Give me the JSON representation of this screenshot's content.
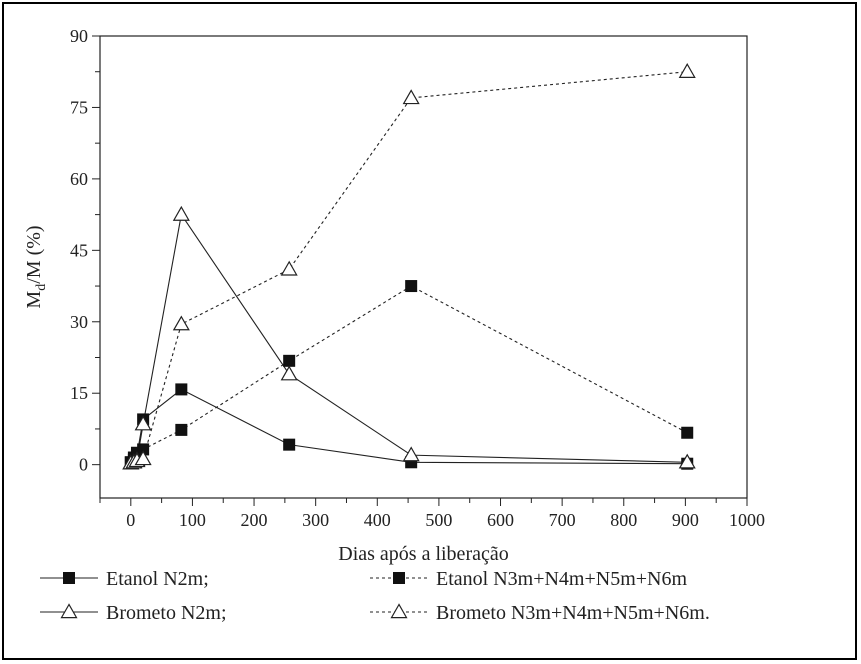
{
  "chart_data": {
    "type": "line",
    "title": "",
    "xlabel": "Dias após a liberação",
    "ylabel_main": "M",
    "ylabel_sub": "d",
    "ylabel_rest": "/M (%)",
    "xlim": [
      -50,
      1000
    ],
    "ylim": [
      -7,
      90
    ],
    "xticks": [
      0,
      100,
      200,
      300,
      400,
      500,
      600,
      700,
      800,
      900,
      1000
    ],
    "yticks": [
      0,
      15,
      30,
      45,
      60,
      75,
      90
    ],
    "grid": false,
    "legend_position": "bottom",
    "series": [
      {
        "name": "Etanol N2m;",
        "marker": "filled-square",
        "line": "solid",
        "points": [
          [
            0,
            0.5
          ],
          [
            5,
            1.5
          ],
          [
            10,
            2.0
          ],
          [
            20,
            9.5
          ],
          [
            82,
            15.8
          ],
          [
            257,
            4.2
          ],
          [
            455,
            0.5
          ],
          [
            903,
            0.2
          ]
        ]
      },
      {
        "name": "Etanol N3m+N4m+N5m+N6m",
        "marker": "filled-square",
        "line": "dashed",
        "points": [
          [
            0,
            0.5
          ],
          [
            5,
            1.0
          ],
          [
            10,
            2.5
          ],
          [
            20,
            3.2
          ],
          [
            82,
            7.3
          ],
          [
            257,
            21.8
          ],
          [
            455,
            37.5
          ],
          [
            903,
            6.7
          ]
        ]
      },
      {
        "name": "Brometo N2m;",
        "marker": "open-triangle",
        "line": "solid",
        "points": [
          [
            0,
            0.3
          ],
          [
            5,
            0.6
          ],
          [
            10,
            1.0
          ],
          [
            20,
            8.5
          ],
          [
            82,
            52.5
          ],
          [
            257,
            19.0
          ],
          [
            455,
            2.0
          ],
          [
            903,
            0.5
          ]
        ]
      },
      {
        "name": "Brometo N3m+N4m+N5m+N6m.",
        "marker": "open-triangle",
        "line": "dashed",
        "points": [
          [
            0,
            0.3
          ],
          [
            5,
            0.5
          ],
          [
            10,
            0.8
          ],
          [
            20,
            1.2
          ],
          [
            82,
            29.5
          ],
          [
            257,
            41.0
          ],
          [
            455,
            77.0
          ],
          [
            903,
            82.5
          ]
        ]
      }
    ]
  }
}
